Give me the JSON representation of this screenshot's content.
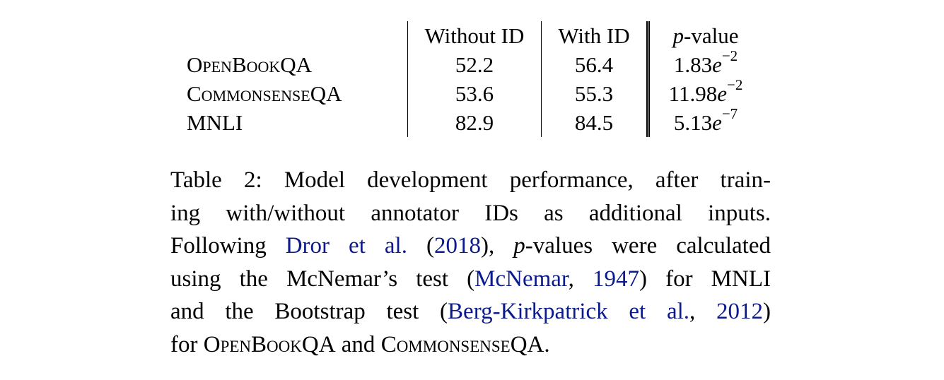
{
  "table": {
    "headers": {
      "name": "",
      "without_id": "Without ID",
      "with_id": "With ID",
      "p_value_italic": "p",
      "p_value_rest": "-value"
    },
    "rows": [
      {
        "dataset": "OpenBookQA",
        "without_id": "52.2",
        "with_id": "56.4",
        "p_mantissa": "1.83",
        "p_base": "e",
        "p_exp": "−2"
      },
      {
        "dataset": "CommonsenseQA",
        "without_id": "53.6",
        "with_id": "55.3",
        "p_mantissa": "11.98",
        "p_base": "e",
        "p_exp": "−2"
      },
      {
        "dataset": "MNLI",
        "without_id": "82.9",
        "with_id": "84.5",
        "p_mantissa": "5.13",
        "p_base": "e",
        "p_exp": "−7"
      }
    ]
  },
  "caption": {
    "l1": "Table 2: Model development performance, after train-",
    "l2": "ing with/without annotator IDs as additional inputs.",
    "l3_a": "Following ",
    "l3_cite_author": "Dror et al.",
    "l3_b": " (",
    "l3_cite_year": "2018",
    "l3_c": "), ",
    "l3_p": "p",
    "l3_d": "-values were calculated",
    "l4_a": "using the McNemar’s test (",
    "l4_cite_author": "McNemar",
    "l4_b": ", ",
    "l4_cite_year": "1947",
    "l4_c": ") for MNLI",
    "l5_a": "and the Bootstrap test (",
    "l5_cite": "Berg-Kirkpatrick et al.",
    "l5_b": ", ",
    "l5_cite_year": "2012",
    "l5_c": ")",
    "l6_a": "for ",
    "l6_ds1": "OpenBookQA",
    "l6_b": " and ",
    "l6_ds2": "CommonsenseQA",
    "l6_c": "."
  }
}
